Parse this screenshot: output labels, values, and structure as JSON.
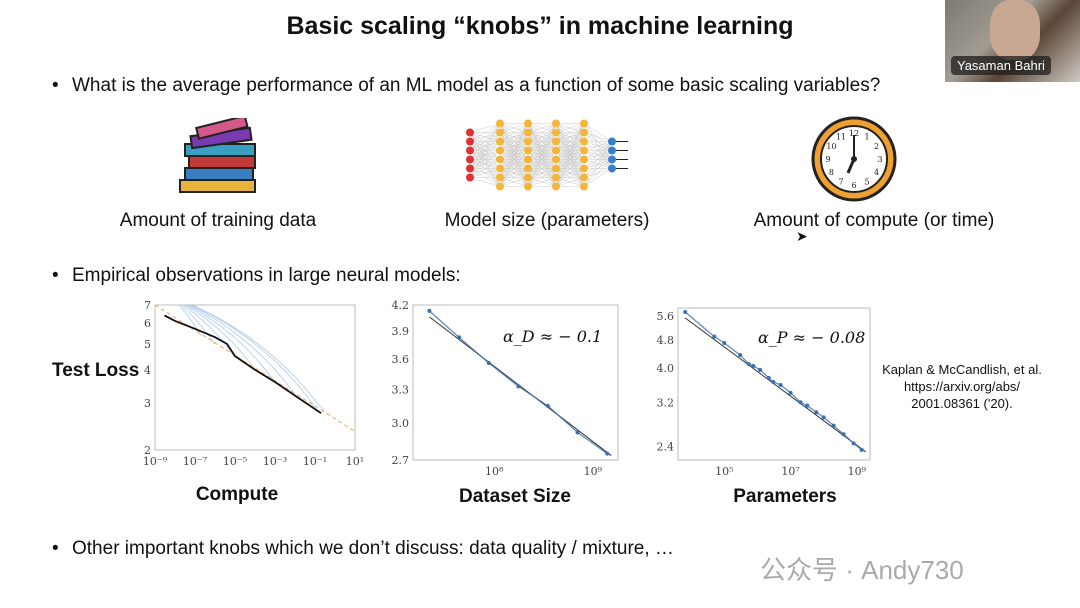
{
  "slide": {
    "title": "Basic scaling “knobs” in machine learning",
    "bullets": [
      "What is the average performance of an ML model as a function of some basic scaling variables?",
      "Empirical observations in large neural models:",
      "Other important knobs which we don’t discuss: data quality / mixture, …"
    ],
    "knobs": [
      {
        "label": "Amount of training data",
        "icon": "books-icon"
      },
      {
        "label": "Model size (parameters)",
        "icon": "neural-network-icon"
      },
      {
        "label": "Amount of compute (or time)",
        "icon": "clock-icon"
      }
    ],
    "ylabel": "Test Loss",
    "citation": "Kaplan & McCandlish, et al. https://arxiv.org/abs/ 2001.08361 ('20)."
  },
  "video": {
    "participant_name": "Yasaman Bahri"
  },
  "watermark": "公众号 · Andy730",
  "chart_data": [
    {
      "type": "line",
      "xlabel": "Compute",
      "xscale": "log",
      "yscale": "log",
      "xlim": [
        1e-09,
        10
      ],
      "ylim": [
        2,
        7
      ],
      "xticks": [
        "10⁻⁹",
        "10⁻⁷",
        "10⁻⁵",
        "10⁻³",
        "10⁻¹",
        "10¹"
      ],
      "xtickvals": [
        1e-09,
        1e-07,
        1e-05,
        0.001,
        0.1,
        10
      ],
      "yticks": [
        "2",
        "3",
        "4",
        "5",
        "6",
        "7"
      ],
      "ytickvals": [
        2,
        3,
        4,
        5,
        6,
        7
      ],
      "frontier": {
        "x": [
          3e-09,
          1e-08,
          1e-07,
          1e-06,
          4e-06,
          1e-05,
          0.0001,
          0.001,
          0.01,
          0.2
        ],
        "y": [
          6.4,
          6.1,
          5.7,
          5.3,
          5.0,
          4.5,
          4.0,
          3.6,
          3.2,
          2.75
        ]
      },
      "trend": {
        "x": [
          1e-09,
          10
        ],
        "y": [
          7,
          2.35
        ]
      },
      "curves": [
        {
          "start": 1e-08,
          "end": 2e-07
        },
        {
          "start": 1e-08,
          "end": 1e-06
        },
        {
          "start": 1e-08,
          "end": 1e-05
        },
        {
          "start": 1e-08,
          "end": 0.0001
        },
        {
          "start": 1e-08,
          "end": 0.001
        },
        {
          "start": 1e-08,
          "end": 0.01
        },
        {
          "start": 1e-08,
          "end": 0.1
        },
        {
          "start": 1e-08,
          "end": 0.3
        }
      ],
      "colors": {
        "frontier": "#111111",
        "trend": "#f0b36b",
        "curves": "#9fc0e4"
      }
    },
    {
      "type": "line",
      "xlabel": "Dataset Size",
      "xscale": "log",
      "yscale": "log",
      "xlim": [
        15000000.0,
        1800000000.0
      ],
      "ylim": [
        2.7,
        4.2
      ],
      "xticks": [
        "10⁸",
        "10⁹"
      ],
      "xtickvals": [
        100000000.0,
        1000000000.0
      ],
      "yticks": [
        "2.7",
        "3.0",
        "3.3",
        "3.6",
        "3.9",
        "4.2"
      ],
      "ytickvals": [
        2.7,
        3.0,
        3.3,
        3.6,
        3.9,
        4.2
      ],
      "annotation": "α_D ≈ − 0.1",
      "x": [
        22000000.0,
        44000000.0,
        88000000.0,
        176000000.0,
        350000000.0,
        700000000.0,
        1400000000.0
      ],
      "y": [
        4.13,
        3.83,
        3.56,
        3.33,
        3.15,
        2.92,
        2.75
      ],
      "colors": {
        "points": "#3b6fb0",
        "fit": "#333333"
      }
    },
    {
      "type": "line",
      "xlabel": "Parameters",
      "xscale": "log",
      "yscale": "log",
      "xlim": [
        4000.0,
        2500000000.0
      ],
      "ylim": [
        2.2,
        5.9
      ],
      "xticks": [
        "10⁵",
        "10⁷",
        "10⁹"
      ],
      "xtickvals": [
        100000.0,
        10000000.0,
        1000000000.0
      ],
      "yticks": [
        "2.4",
        "3.2",
        "4.0",
        "4.8",
        "5.6"
      ],
      "ytickvals": [
        2.4,
        3.2,
        4.0,
        4.8,
        5.6
      ],
      "annotation": "α_P ≈ − 0.08",
      "x": [
        6600.0,
        50000.0,
        100000.0,
        300000.0,
        550000.0,
        750000.0,
        1200000.0,
        2200000.0,
        3000000.0,
        5000000.0,
        10000000.0,
        20000000.0,
        32000000.0,
        60000000.0,
        100000000.0,
        200000000.0,
        400000000.0,
        800000000.0,
        1400000000.0
      ],
      "y": [
        5.75,
        4.9,
        4.7,
        4.35,
        4.1,
        4.05,
        3.95,
        3.75,
        3.65,
        3.58,
        3.4,
        3.2,
        3.13,
        3.0,
        2.9,
        2.75,
        2.6,
        2.45,
        2.35
      ],
      "colors": {
        "points": "#3b6fb0",
        "fit": "#333333"
      }
    }
  ]
}
